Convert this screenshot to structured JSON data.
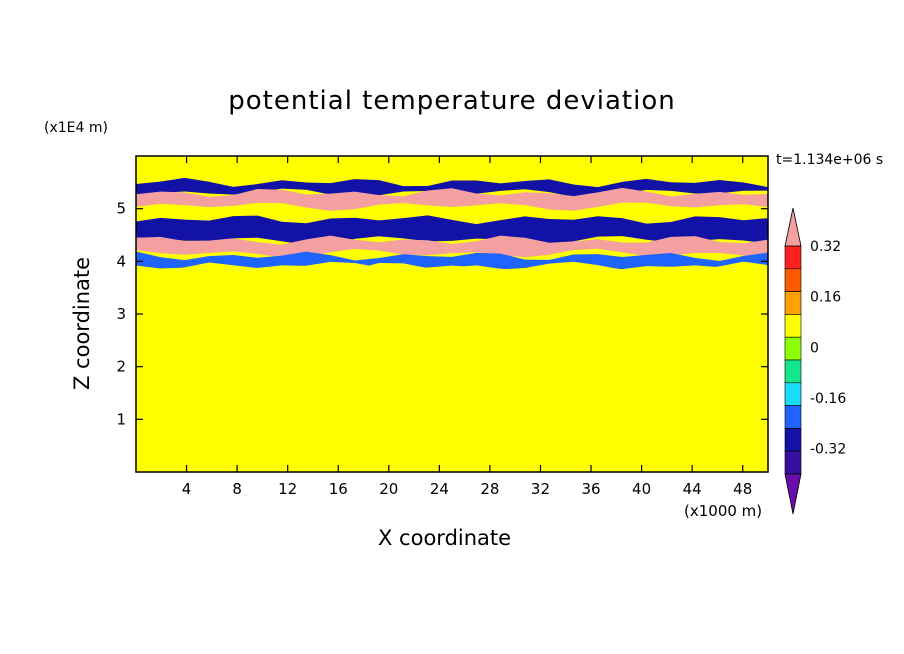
{
  "chart_data": {
    "type": "heatmap",
    "title": "potential temperature deviation",
    "xlabel": "X coordinate",
    "ylabel": "Z coordinate",
    "x_unit": "(x1000 m)",
    "y_unit": "(x1E4 m)",
    "time_label": "t=1.134e+06 s",
    "xlim": [
      0,
      50
    ],
    "ylim": [
      0,
      6
    ],
    "x_ticks": [
      "4",
      "8",
      "12",
      "16",
      "20",
      "24",
      "28",
      "32",
      "36",
      "40",
      "44",
      "48"
    ],
    "y_ticks": [
      "1",
      "2",
      "3",
      "4",
      "5"
    ],
    "colorbar": {
      "levels": [
        -0.48,
        -0.4,
        -0.32,
        -0.24,
        -0.16,
        -0.08,
        0,
        0.08,
        0.16,
        0.24,
        0.32,
        0.4
      ],
      "labels": [
        "0.32",
        "0.16",
        "0",
        "-0.16",
        "-0.32"
      ],
      "colors": [
        "#6a0dad",
        "#3a0fa0",
        "#1212a6",
        "#1f64ff",
        "#19dcff",
        "#14e68c",
        "#8cff00",
        "#ffff00",
        "#ffa000",
        "#ff5a00",
        "#ff2020",
        "#f5a0a0"
      ],
      "extend": "both"
    },
    "layers": [
      {
        "z": [
          5.5,
          5.9
        ],
        "value": 0.02
      },
      {
        "z": [
          5.3,
          5.5
        ],
        "value": -0.4
      },
      {
        "z": [
          5.05,
          5.3
        ],
        "value": 0.4
      },
      {
        "z": [
          4.4,
          4.8
        ],
        "value": -0.4
      },
      {
        "z": [
          4.15,
          4.4
        ],
        "value": 0.4
      },
      {
        "z": [
          3.9,
          4.1
        ],
        "value": -0.3
      },
      {
        "z": [
          0.8,
          3.9
        ],
        "value": 0.02
      },
      {
        "z": [
          0,
          0.8
        ],
        "value": 0.05
      }
    ]
  }
}
